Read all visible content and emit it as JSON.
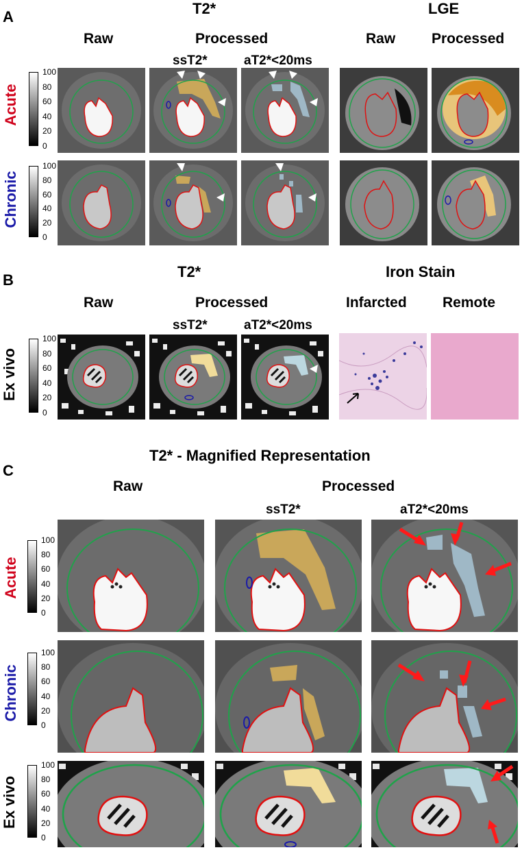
{
  "panel_A": {
    "letter": "A",
    "t2_title": "T2*",
    "lge_title": "LGE",
    "raw_label": "Raw",
    "processed_label": "Processed",
    "lge_raw_label": "Raw",
    "lge_processed_label": "Processed",
    "sst2_label": "ssT2*",
    "at2_label": "aT2*<20ms",
    "row_acute": "Acute",
    "row_chronic": "Chronic"
  },
  "panel_B": {
    "letter": "B",
    "t2_title": "T2*",
    "iron_title": "Iron Stain",
    "raw_label": "Raw",
    "processed_label": "Processed",
    "sst2_label": "ssT2*",
    "at2_label": "aT2*<20ms",
    "infarcted_label": "Infarcted",
    "remote_label": "Remote",
    "row_exvivo": "Ex vivo"
  },
  "panel_C": {
    "letter": "C",
    "title": "T2* - Magnified Representation",
    "raw_label": "Raw",
    "processed_label": "Processed",
    "sst2_label": "ssT2*",
    "at2_label": "aT2*<20ms",
    "row_acute": "Acute",
    "row_chronic": "Chronic",
    "row_exvivo": "Ex vivo"
  },
  "colorbar": {
    "ticks": [
      "100",
      "80",
      "60",
      "40",
      "20",
      "0"
    ]
  },
  "colors": {
    "acute": "#d0021b",
    "chronic": "#1a1aa8",
    "epicardium": "#1fa34a",
    "endocardium": "#e01010",
    "sst2_overlay": "#c9a75a",
    "at2_overlay": "#9fb8c6",
    "lge_overlay": "#d98c1f",
    "arrow": "#ff1a1a"
  }
}
